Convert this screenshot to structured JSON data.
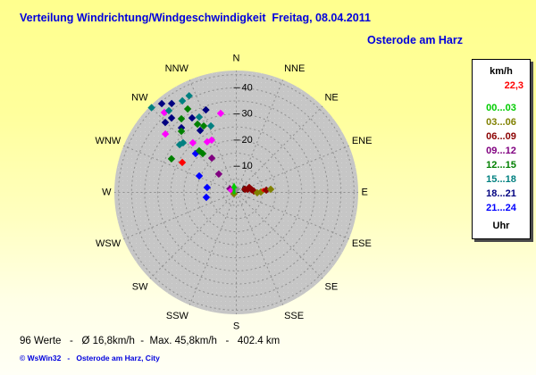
{
  "header": {
    "title": "Verteilung Windrichtung/Windgeschwindigkeit  Freitag, 08.04.2011",
    "station": "Osterode am Harz"
  },
  "legend": {
    "title": "km/h",
    "current_value": "22,3",
    "current_value_color": "#ff0000",
    "entries": [
      {
        "label": "00...03",
        "color": "#00cc00"
      },
      {
        "label": "03...06",
        "color": "#808000"
      },
      {
        "label": "06...09",
        "color": "#8b0000"
      },
      {
        "label": "09...12",
        "color": "#800080"
      },
      {
        "label": "12...15",
        "color": "#008000"
      },
      {
        "label": "15...18",
        "color": "#008080"
      },
      {
        "label": "18...21",
        "color": "#000080"
      },
      {
        "label": "21...24",
        "color": "#0000ff"
      }
    ],
    "footer_label": "Uhr"
  },
  "footer": {
    "stats": "96 Werte   -   Ø 16,8km/h  -  Max. 45,8km/h   -   402.4 km",
    "copyright": "© WsWin32   -   Osterode am Harz, City"
  },
  "chart_data": {
    "type": "scatter",
    "variant": "polar-wind-rose",
    "title": "Verteilung Windrichtung/Windgeschwindigkeit Freitag, 08.04.2011",
    "units": "km/h",
    "legend_position": "right",
    "grid": "dashed",
    "compass_labels": [
      "N",
      "NNE",
      "NE",
      "ENE",
      "E",
      "ESE",
      "SE",
      "SSE",
      "S",
      "SSW",
      "SW",
      "WSW",
      "W",
      "WNW",
      "NW",
      "NNW"
    ],
    "radial_axis": {
      "tick_values": [
        0,
        10,
        20,
        30,
        40
      ],
      "grid_rings_kmh": [
        5,
        10,
        15,
        20,
        25,
        30,
        35,
        40,
        45
      ],
      "max_kmh": 46.5
    },
    "summary": {
      "count": 96,
      "mean_kmh": 16.8,
      "max_kmh": 45.8,
      "distance_km": 402.4,
      "current_kmh": 22.3
    },
    "colors": {
      "lime": "#00cc00",
      "olive": "#808000",
      "maroon": "#8b0000",
      "purple": "#800080",
      "green": "#008000",
      "teal": "#008080",
      "navy": "#000080",
      "blue": "#0000ff",
      "magenta": "#ff00ff",
      "red": "#ff0000",
      "gray": "#909090"
    },
    "hour_class_colors": {
      "00...03": "lime",
      "03...06": "olive",
      "06...09": "maroon",
      "09...12": "purple",
      "12...15": "green",
      "15...18": "teal",
      "18...21": "navy",
      "21...24": "blue"
    },
    "center_marker": {
      "shape": "up-arrow",
      "color": "lime"
    },
    "points": [
      {
        "dir_deg": 315.0,
        "speed_kmh": 45.8,
        "color": "teal"
      },
      {
        "dir_deg": 320.0,
        "speed_kmh": 44.3,
        "color": "navy"
      },
      {
        "dir_deg": 324.0,
        "speed_kmh": 42.0,
        "color": "navy"
      },
      {
        "dir_deg": 329.5,
        "speed_kmh": 40.6,
        "color": "teal"
      },
      {
        "dir_deg": 334.0,
        "speed_kmh": 41.1,
        "color": "teal"
      },
      {
        "dir_deg": 318.0,
        "speed_kmh": 41.1,
        "color": "magenta"
      },
      {
        "dir_deg": 320.5,
        "speed_kmh": 40.5,
        "color": "teal"
      },
      {
        "dir_deg": 314.6,
        "speed_kmh": 38.1,
        "color": "navy"
      },
      {
        "dir_deg": 319.0,
        "speed_kmh": 37.7,
        "color": "navy"
      },
      {
        "dir_deg": 329.8,
        "speed_kmh": 36.9,
        "color": "green"
      },
      {
        "dir_deg": 323.3,
        "speed_kmh": 35.1,
        "color": "green"
      },
      {
        "dir_deg": 309.5,
        "speed_kmh": 35.1,
        "color": "magenta"
      },
      {
        "dir_deg": 339.8,
        "speed_kmh": 33.6,
        "color": "navy"
      },
      {
        "dir_deg": 329.3,
        "speed_kmh": 33.1,
        "color": "navy"
      },
      {
        "dir_deg": 333.8,
        "speed_kmh": 32.1,
        "color": "teal"
      },
      {
        "dir_deg": 319.7,
        "speed_kmh": 32.4,
        "color": "navy"
      },
      {
        "dir_deg": 318.1,
        "speed_kmh": 31.4,
        "color": "green"
      },
      {
        "dir_deg": 348.8,
        "speed_kmh": 30.8,
        "color": "magenta"
      },
      {
        "dir_deg": 330.4,
        "speed_kmh": 30.0,
        "color": "green"
      },
      {
        "dir_deg": 333.9,
        "speed_kmh": 28.3,
        "color": "green"
      },
      {
        "dir_deg": 339.1,
        "speed_kmh": 27.2,
        "color": "teal"
      },
      {
        "dir_deg": 329.8,
        "speed_kmh": 27.4,
        "color": "navy"
      },
      {
        "dir_deg": 313.0,
        "speed_kmh": 27.8,
        "color": "teal"
      },
      {
        "dir_deg": 310.1,
        "speed_kmh": 28.3,
        "color": "teal"
      },
      {
        "dir_deg": 297.4,
        "speed_kmh": 27.9,
        "color": "green"
      },
      {
        "dir_deg": 318.8,
        "speed_kmh": 25.2,
        "color": "magenta"
      },
      {
        "dir_deg": 330.1,
        "speed_kmh": 22.3,
        "color": "magenta"
      },
      {
        "dir_deg": 334.8,
        "speed_kmh": 22.1,
        "color": "magenta"
      },
      {
        "dir_deg": 299.0,
        "speed_kmh": 23.6,
        "color": "red"
      },
      {
        "dir_deg": 313.7,
        "speed_kmh": 21.5,
        "color": "blue"
      },
      {
        "dir_deg": 318.3,
        "speed_kmh": 21.3,
        "color": "green"
      },
      {
        "dir_deg": 319.2,
        "speed_kmh": 19.6,
        "color": "green"
      },
      {
        "dir_deg": 324.5,
        "speed_kmh": 16.1,
        "color": "purple"
      },
      {
        "dir_deg": 294.0,
        "speed_kmh": 15.5,
        "color": "blue"
      },
      {
        "dir_deg": 279.6,
        "speed_kmh": 11.3,
        "color": "blue"
      },
      {
        "dir_deg": 260.7,
        "speed_kmh": 11.6,
        "color": "blue"
      },
      {
        "dir_deg": 316.4,
        "speed_kmh": 9.7,
        "color": "purple"
      },
      {
        "dir_deg": 300.0,
        "speed_kmh": 2.8,
        "color": "purple"
      },
      {
        "dir_deg": 295.0,
        "speed_kmh": 2.0,
        "color": "magenta"
      },
      {
        "dir_deg": 240.0,
        "speed_kmh": 1.0,
        "color": "olive"
      },
      {
        "dir_deg": 0.0,
        "speed_kmh": 1.2,
        "color": "gray"
      },
      {
        "dir_deg": 70.0,
        "speed_kmh": 3.5,
        "color": "maroon"
      },
      {
        "dir_deg": 75.0,
        "speed_kmh": 4.5,
        "color": "maroon"
      },
      {
        "dir_deg": 69.0,
        "speed_kmh": 5.3,
        "color": "maroon"
      },
      {
        "dir_deg": 80.0,
        "speed_kmh": 6.0,
        "color": "maroon"
      },
      {
        "dir_deg": 85.6,
        "speed_kmh": 6.7,
        "color": "maroon"
      },
      {
        "dir_deg": 91.0,
        "speed_kmh": 8.0,
        "color": "olive"
      },
      {
        "dir_deg": 89.0,
        "speed_kmh": 9.4,
        "color": "olive"
      },
      {
        "dir_deg": 85.0,
        "speed_kmh": 10.4,
        "color": "red",
        "small": true
      },
      {
        "dir_deg": 85.7,
        "speed_kmh": 11.5,
        "color": "maroon"
      },
      {
        "dir_deg": 84.8,
        "speed_kmh": 13.2,
        "color": "olive"
      }
    ]
  }
}
